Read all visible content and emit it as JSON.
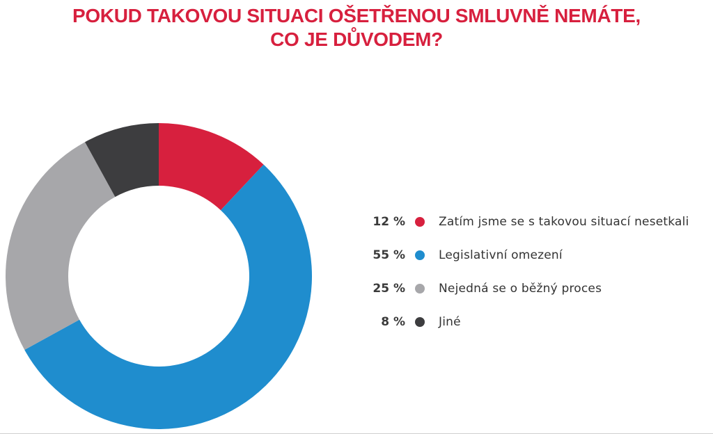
{
  "chart_data": {
    "type": "pie",
    "title_lines": [
      "POKUD TAKOVOU SITUACI OŠETŘENOU SMLUVNĚ NEMÁTE,",
      "CO JE DŮVODEM?"
    ],
    "series": [
      {
        "name": "Zatím jsme se s takovou situací nesetkali",
        "value": 12,
        "label": "12 %",
        "color": "#d7203e"
      },
      {
        "name": "Legislativní omezení",
        "value": 55,
        "label": "55 %",
        "color": "#1f8dce"
      },
      {
        "name": "Nejedná se o běžný proces",
        "value": 25,
        "label": "25 %",
        "color": "#a7a7aa"
      },
      {
        "name": "Jiné",
        "value": 8,
        "label": "8 %",
        "color": "#3d3d3f"
      }
    ],
    "legend_position": "right",
    "donut": true
  }
}
